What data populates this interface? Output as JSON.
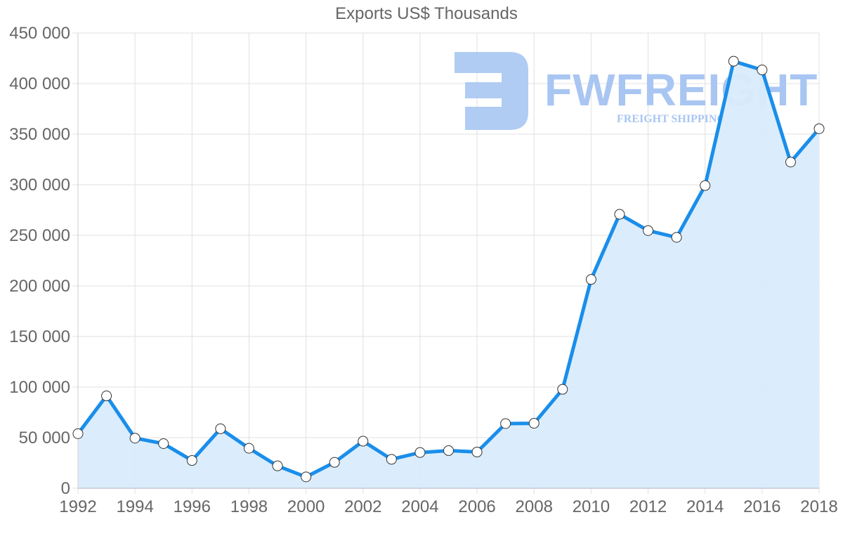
{
  "chart_data": {
    "type": "area",
    "title": "Exports US$ Thousands",
    "xlabel": "",
    "ylabel": "",
    "x": [
      1992,
      1993,
      1994,
      1995,
      1996,
      1997,
      1998,
      1999,
      2000,
      2001,
      2002,
      2003,
      2004,
      2005,
      2006,
      2007,
      2008,
      2009,
      2010,
      2011,
      2012,
      2013,
      2014,
      2015,
      2016,
      2017,
      2018
    ],
    "series": [
      {
        "name": "Exports US$ Thousands",
        "values": [
          53900,
          91300,
          49500,
          44100,
          27400,
          58800,
          39500,
          22100,
          11200,
          25600,
          46500,
          28600,
          35300,
          37200,
          35800,
          63900,
          64200,
          97800,
          206400,
          270800,
          254700,
          248000,
          299200,
          422100,
          413500,
          322400,
          355400
        ]
      }
    ],
    "x_tick_labels": [
      "1992",
      "1994",
      "1996",
      "1998",
      "2000",
      "2002",
      "2004",
      "2006",
      "2008",
      "2010",
      "2012",
      "2014",
      "2016",
      "2018"
    ],
    "y_tick_labels": [
      "0",
      "50 000",
      "100 000",
      "150 000",
      "200 000",
      "250 000",
      "300 000",
      "350 000",
      "400 000",
      "450 000"
    ],
    "ylim": [
      0,
      450000
    ],
    "xlim": [
      1992,
      2018
    ],
    "grid": true,
    "legend": "none",
    "colors": {
      "line": "#1a8eea",
      "fill": "#d9ecfc",
      "point_fill": "#ffffff",
      "point_border": "#333333",
      "grid": "#e0e0e0",
      "tick_text": "#666666"
    }
  },
  "watermark": {
    "brand": "FWFREIGHT",
    "tagline": "FREIGHT SHIPPING",
    "logo_icon": "fw-logo-icon"
  }
}
